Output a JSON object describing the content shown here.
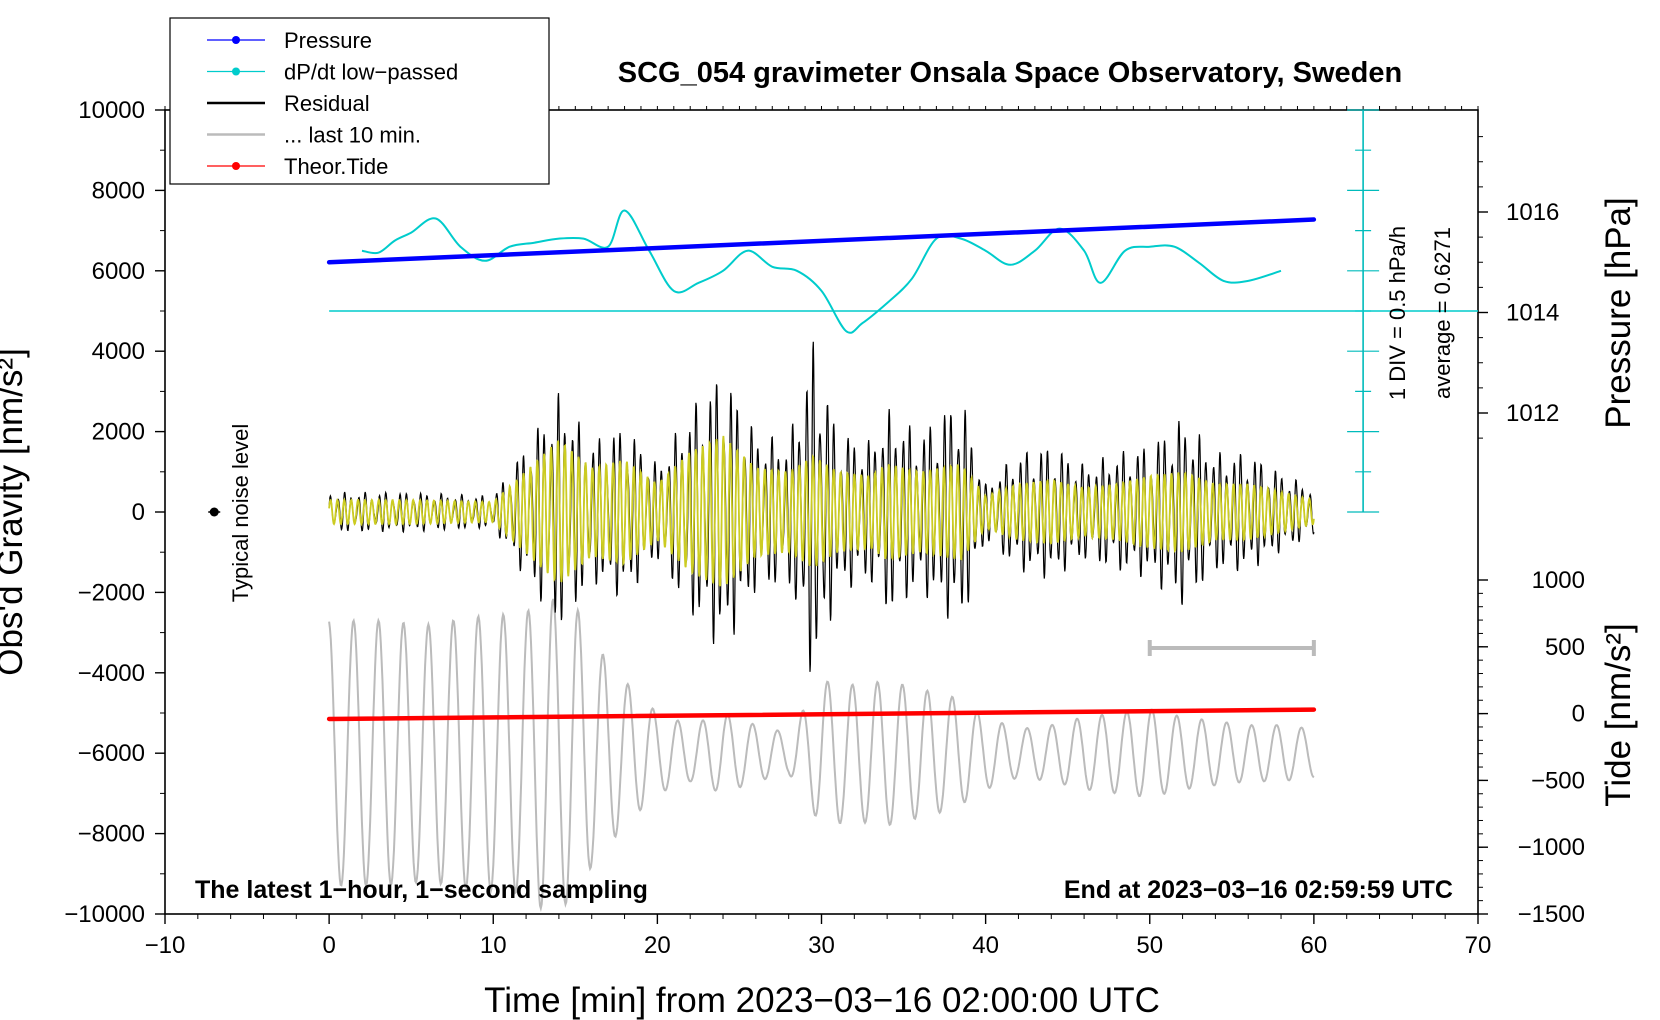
{
  "chart_data": {
    "type": "line",
    "title": "SCG_054 gravimeter Onsala Space Observatory, Sweden",
    "xlabel": "Time [min] from 2023−03−16 02:00:00 UTC",
    "ylabel_left": "Obs'd Gravity [nm/s²]",
    "ylabel_pressure": "Pressure [hPa]",
    "ylabel_tide": "Tide [nm/s²]",
    "xlim": [
      -10,
      70
    ],
    "ylim": [
      -10000,
      10000
    ],
    "pressure_lim": [
      1012,
      1016
    ],
    "tide_lim": [
      -1500,
      1000
    ],
    "x_ticks": [
      -10,
      0,
      10,
      20,
      30,
      40,
      50,
      60,
      70
    ],
    "x_tick_labels": [
      "−10",
      "0",
      "10",
      "20",
      "30",
      "40",
      "50",
      "60",
      "70"
    ],
    "y_ticks": [
      10000,
      8000,
      6000,
      4000,
      2000,
      0,
      -2000,
      -4000,
      -6000,
      -8000,
      -10000
    ],
    "y_tick_labels": [
      "10000",
      "8000",
      "6000",
      "4000",
      "2000",
      "0",
      "−2000",
      "−4000",
      "−6000",
      "−8000",
      "−10000"
    ],
    "pressure_ticks": [
      1016,
      1014,
      1012
    ],
    "pressure_tick_labels": [
      "1016",
      "1014",
      "1012"
    ],
    "tide_ticks": [
      1000,
      500,
      0,
      -500,
      -1000,
      -1500
    ],
    "tide_tick_labels": [
      "1000",
      "500",
      "0",
      "−500",
      "−1000",
      "−1500"
    ],
    "legend": [
      {
        "label": "Pressure",
        "color": "#0000ff",
        "style": "line-dot"
      },
      {
        "label": "dP/dt low−passed",
        "color": "#00cccc",
        "style": "line-dot"
      },
      {
        "label": "Residual",
        "color": "#000000",
        "style": "line"
      },
      {
        "label": "... last 10 min.",
        "color": "#bbbbbb",
        "style": "line"
      },
      {
        "label": "Theor.Tide",
        "color": "#ff0000",
        "style": "line-dot"
      }
    ],
    "series": [
      {
        "name": "Pressure",
        "unit": "hPa",
        "color": "#0000ff",
        "x": [
          0,
          60
        ],
        "values": [
          1015.0,
          1015.85
        ]
      },
      {
        "name": "Theor.Tide",
        "unit": "nm/s²",
        "color": "#ff0000",
        "x": [
          0,
          60
        ],
        "values": [
          -40,
          30
        ]
      },
      {
        "name": "dP/dt low−passed",
        "unit": "nm/s²",
        "color": "#00cccc",
        "x": [
          2,
          3,
          4,
          5,
          6.5,
          8,
          9.5,
          11,
          12.5,
          14,
          15.5,
          17,
          18,
          19.5,
          21,
          22.5,
          24,
          25.5,
          27,
          28.5,
          30,
          31.5,
          32.5,
          34,
          35.5,
          37,
          38.5,
          40,
          41.5,
          43,
          44.5,
          46,
          47,
          48.5,
          50,
          51.5,
          53,
          54.5,
          56,
          58
        ],
        "values": [
          6500,
          6450,
          6750,
          6950,
          7300,
          6600,
          6250,
          6600,
          6700,
          6800,
          6800,
          6600,
          7500,
          6500,
          5500,
          5700,
          6000,
          6500,
          6100,
          6000,
          5500,
          4500,
          4700,
          5200,
          5800,
          6800,
          6800,
          6500,
          6150,
          6500,
          7050,
          6500,
          5700,
          6500,
          6600,
          6600,
          6200,
          5750,
          5750,
          6000
        ]
      },
      {
        "name": "Residual",
        "unit": "nm/s²",
        "color": "#000000",
        "x": [
          0,
          5,
          10,
          14,
          16,
          18,
          20,
          22,
          24,
          26,
          28,
          29.5,
          31,
          33,
          34,
          36,
          38.5,
          40,
          42,
          44,
          46,
          48,
          50,
          52,
          54,
          56,
          58,
          60
        ],
        "envelope": [
          500,
          500,
          400,
          3000,
          1800,
          2200,
          1200,
          2600,
          3600,
          2000,
          1800,
          4400,
          2000,
          1800,
          2600,
          2000,
          3000,
          700,
          1500,
          1700,
          1200,
          1500,
          1700,
          2400,
          1500,
          1500,
          1000,
          600
        ]
      },
      {
        "name": "Residual (yellow)",
        "unit": "nm/s²",
        "color": "#cccc22",
        "x": [
          0,
          5,
          10,
          14,
          16,
          18,
          20,
          22,
          24,
          26,
          28,
          29.5,
          31,
          33,
          34,
          36,
          38.5,
          40,
          42,
          44,
          46,
          48,
          50,
          52,
          54,
          56,
          58,
          60
        ],
        "envelope": [
          300,
          300,
          250,
          1800,
          1100,
          1300,
          700,
          1500,
          1900,
          1100,
          1000,
          1400,
          1000,
          900,
          1200,
          1000,
          1200,
          400,
          700,
          800,
          600,
          700,
          900,
          1000,
          700,
          700,
          500,
          300
        ]
      },
      {
        "name": "... last 10 min.",
        "unit": "nm/s²",
        "color": "#bbbbbb",
        "x": [
          0,
          3,
          6,
          9,
          12,
          13,
          15,
          16,
          18,
          20,
          22,
          24,
          26,
          28,
          30,
          32,
          34,
          36,
          38,
          40,
          42,
          44,
          46,
          48,
          50,
          52,
          54,
          56,
          58,
          60
        ],
        "envelope": [
          3300,
          3300,
          3200,
          3400,
          3500,
          3900,
          3700,
          2800,
          1800,
          1000,
          700,
          1000,
          700,
          500,
          1800,
          1700,
          1800,
          1600,
          1400,
          900,
          600,
          700,
          900,
          1000,
          1100,
          900,
          800,
          700,
          700,
          600
        ],
        "center": -6000
      },
      {
        "name": "Typical noise level",
        "unit": "nm/s²",
        "color": "#000000",
        "x": [
          -7
        ],
        "values": [
          0
        ]
      }
    ],
    "annotations": {
      "noise_label": "Typical noise level",
      "pressure_scale": "1 DIV = 0.5 hPa/h",
      "pressure_average": "average = 0.6271",
      "bottom_left": "The latest 1−hour, 1−second sampling",
      "bottom_right": "End at 2023−03−16 02:59:59 UTC"
    },
    "last10_bar": [
      50,
      60
    ],
    "dpdt_scale_axis": {
      "x": 63,
      "y_range": [
        0,
        10000
      ],
      "zero_line_y": 5000
    },
    "grid": false,
    "legend_position": "top-left"
  }
}
